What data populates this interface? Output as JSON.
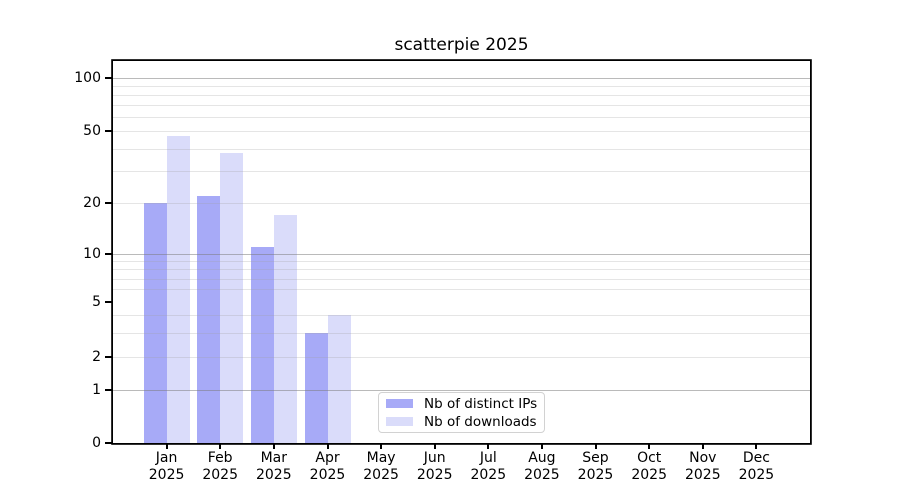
{
  "figure_title": "scatterpie 2025",
  "chart_data": {
    "type": "bar",
    "title": "scatterpie 2025",
    "categories": [
      "Jan",
      "Feb",
      "Mar",
      "Apr",
      "May",
      "Jun",
      "Jul",
      "Aug",
      "Sep",
      "Oct",
      "Nov",
      "Dec"
    ],
    "x_sublabel": "2025",
    "series": [
      {
        "name": "Nb of distinct IPs",
        "color": "#a7aaf7",
        "values": [
          20,
          22,
          11,
          3,
          0,
          0,
          0,
          0,
          0,
          0,
          0,
          0
        ]
      },
      {
        "name": "Nb of downloads",
        "color": "#dadcfa",
        "values": [
          47,
          38,
          17,
          4,
          0,
          0,
          0,
          0,
          0,
          0,
          0,
          0
        ]
      }
    ],
    "y_axis": {
      "scale": "symlog",
      "tick_labels": [
        0,
        1,
        2,
        5,
        10,
        20,
        50,
        100
      ],
      "range": [
        0,
        130
      ]
    },
    "grid": {
      "on": true,
      "major_lines_at": [
        1,
        10,
        100
      ],
      "minor_lines_at": [
        2,
        3,
        4,
        6,
        7,
        8,
        9,
        20,
        30,
        40,
        50,
        60,
        70,
        80,
        90
      ]
    },
    "legend": {
      "position": "lower-center-left",
      "entries": [
        "Nb of distinct IPs",
        "Nb of downloads"
      ]
    },
    "colors": {
      "bar_dark": "#a7aaf7",
      "bar_light": "#dadcfa",
      "axis": "#000000",
      "grid_major": "#bdbdbd",
      "grid_minor": "#e9e9e9",
      "legend_border": "#d2d2d2"
    }
  }
}
